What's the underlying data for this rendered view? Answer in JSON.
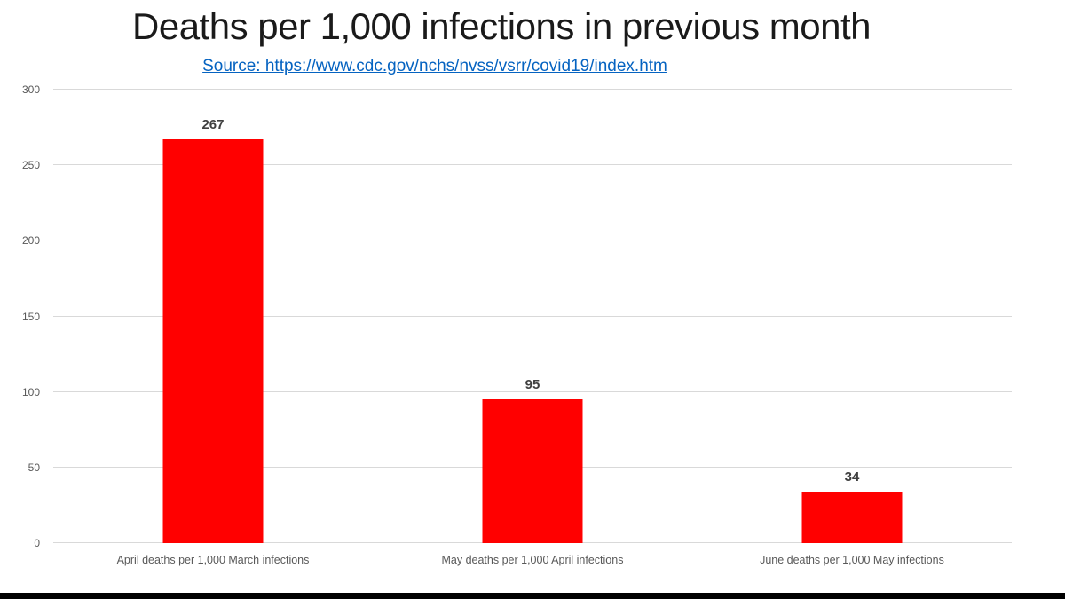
{
  "source": {
    "label": "Source: https://www.cdc.gov/nchs/nvss/vsrr/covid19/index.htm"
  },
  "chart_data": {
    "type": "bar",
    "title": "Deaths per 1,000 infections in previous month",
    "categories": [
      "April deaths per 1,000 March infections",
      "May deaths per 1,000 April infections",
      "June deaths per 1,000 May infections"
    ],
    "values": [
      267,
      95,
      34
    ],
    "data_labels": [
      "267",
      "95",
      "34"
    ],
    "xlabel": "",
    "ylabel": "",
    "ylim": [
      0,
      300
    ],
    "yticks": [
      0,
      50,
      100,
      150,
      200,
      250,
      300
    ],
    "grid": true,
    "legend": false,
    "bar_color": "#ff0000",
    "gridline_color": "#d9d9d9",
    "tick_label_color": "#595959",
    "data_label_color": "#404040",
    "link_color": "#0563c1"
  }
}
